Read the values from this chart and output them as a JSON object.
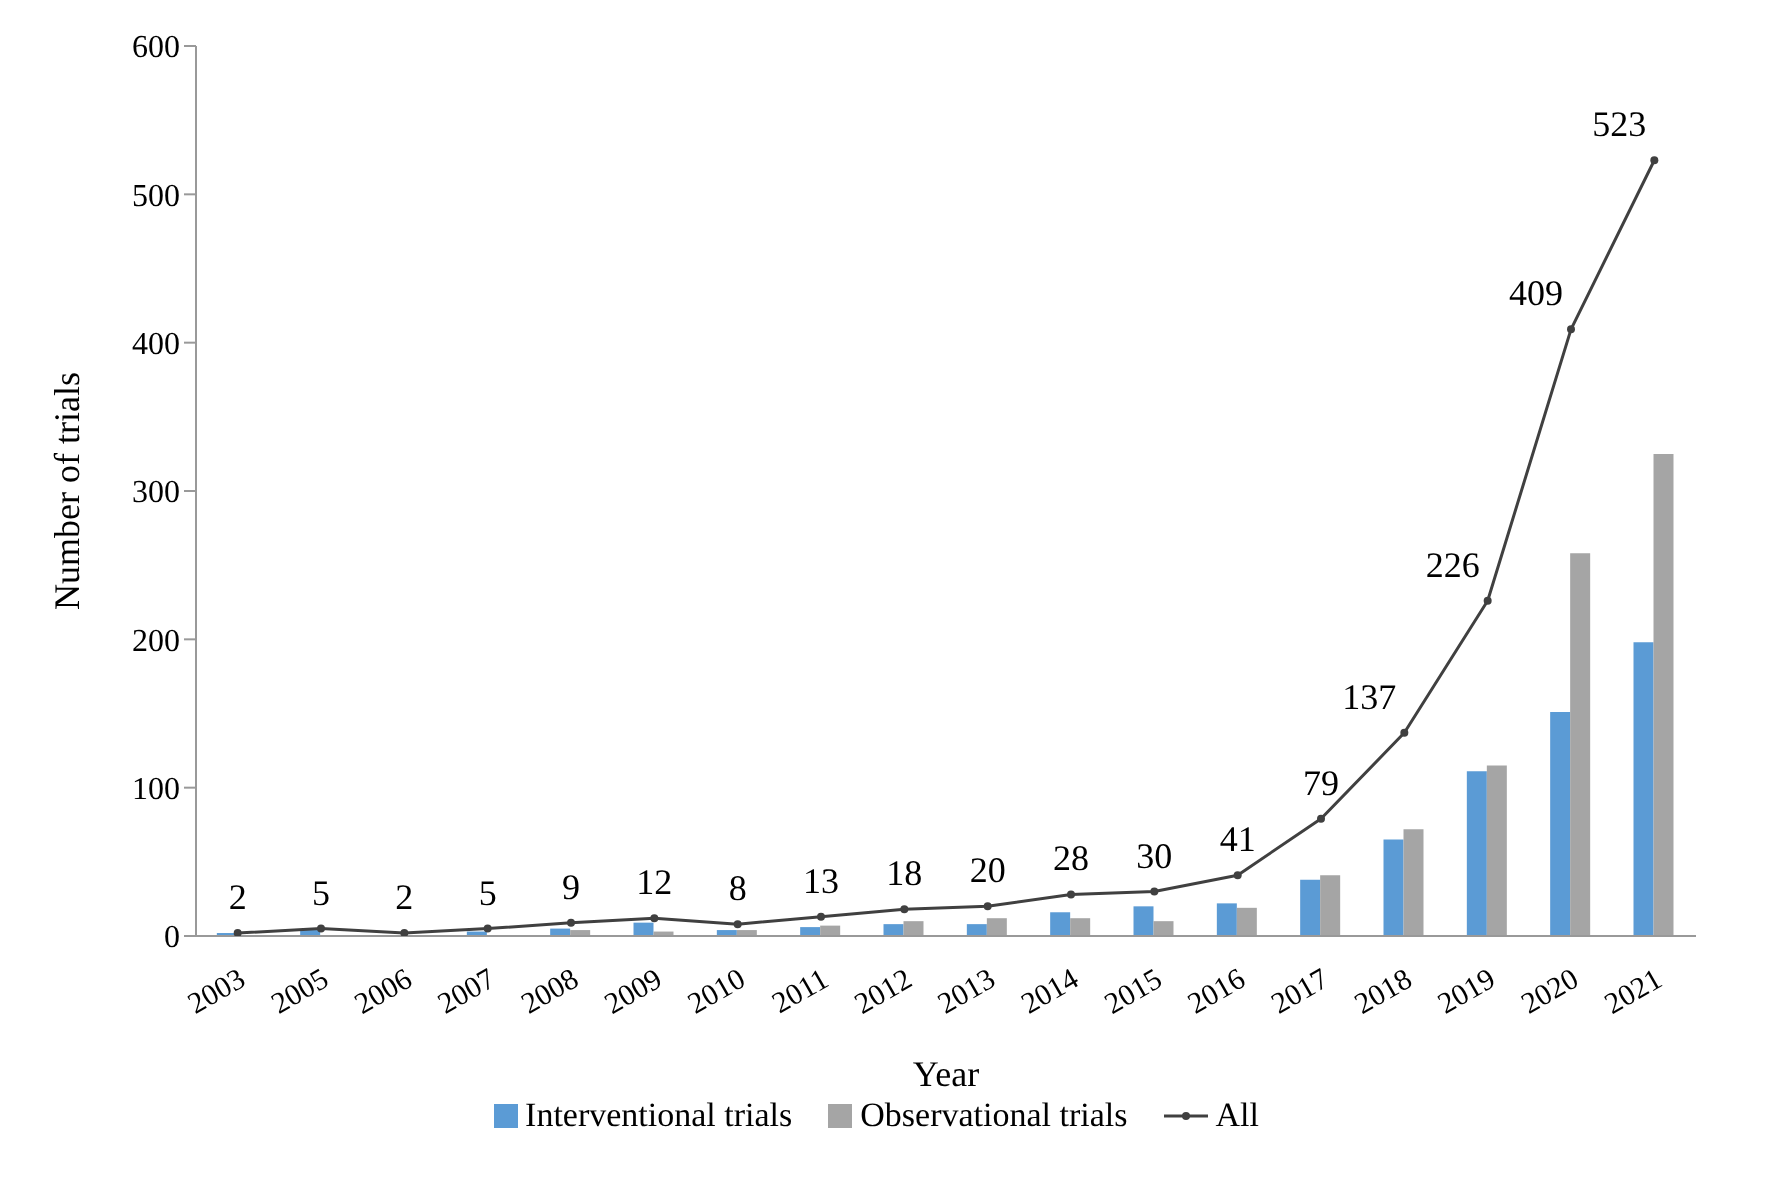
{
  "chart_data": {
    "type": "bar",
    "xlabel": "Year",
    "ylabel": "Number of trials",
    "categories": [
      "2003",
      "2005",
      "2006",
      "2007",
      "2008",
      "2009",
      "2010",
      "2011",
      "2012",
      "2013",
      "2014",
      "2015",
      "2016",
      "2017",
      "2018",
      "2019",
      "2020",
      "2021"
    ],
    "series": [
      {
        "name": "Interventional trials",
        "color": "#5b9bd5",
        "values": [
          2,
          4,
          null,
          3,
          5,
          9,
          4,
          6,
          8,
          8,
          16,
          20,
          22,
          38,
          65,
          111,
          151,
          198
        ]
      },
      {
        "name": "Observational trials",
        "color": "#a5a5a5",
        "values": [
          0,
          null,
          null,
          null,
          4,
          3,
          4,
          7,
          10,
          12,
          12,
          10,
          19,
          41,
          72,
          115,
          258,
          325
        ]
      },
      {
        "name": "All",
        "type": "line",
        "color": "#404040",
        "marker": "circle",
        "values": [
          2,
          5,
          2,
          5,
          9,
          12,
          8,
          13,
          18,
          20,
          28,
          30,
          41,
          79,
          137,
          226,
          409,
          523
        ],
        "value_labels": [
          "2",
          "5",
          "2",
          "5",
          "9",
          "12",
          "8",
          "13",
          "18",
          "20",
          "28",
          "30",
          "41",
          "79",
          "137",
          "226",
          "409",
          "523"
        ]
      }
    ],
    "ylim": [
      0,
      600
    ],
    "yticks": [
      0,
      100,
      200,
      300,
      400,
      500,
      600
    ],
    "grid": false,
    "legend": "bottom"
  }
}
